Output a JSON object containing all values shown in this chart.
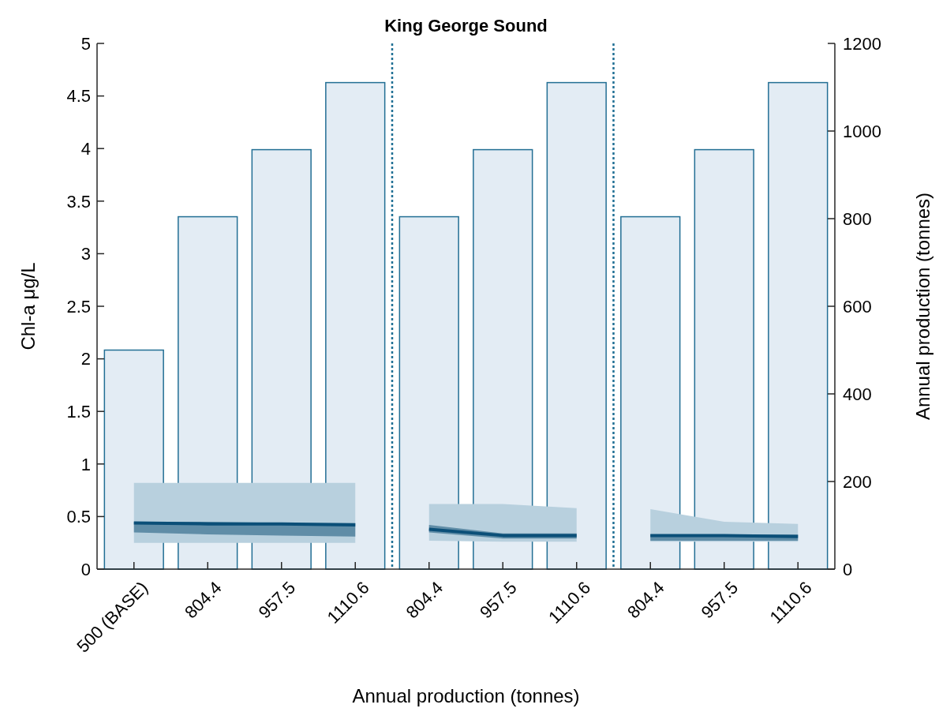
{
  "chart_data": {
    "type": "bar",
    "title": "King George Sound",
    "xlabel": "Annual production (tonnes)",
    "ylabel": "Chl-a μg/L",
    "y2label": "Annual production (tonnes)",
    "categories": [
      "500 (BASE)",
      "804.4",
      "957.5",
      "1110.6",
      "804.4",
      "957.5",
      "1110.6",
      "804.4",
      "957.5",
      "1110.6"
    ],
    "ylim": [
      0,
      5
    ],
    "yticks": [
      0,
      0.5,
      1,
      1.5,
      2,
      2.5,
      3,
      3.5,
      4,
      4.5,
      5
    ],
    "y2lim": [
      0,
      1200
    ],
    "y2ticks": [
      0,
      200,
      400,
      600,
      800,
      1000,
      1200
    ],
    "series": [
      {
        "axis": "y2",
        "color": "#e3ecf4",
        "values": [
          500,
          804.4,
          957.5,
          1110.6,
          804.4,
          957.5,
          1110.6,
          804.4,
          957.5,
          1110.6
        ]
      },
      {
        "type": "line",
        "color": "#b8d0de",
        "values": [
          null,
          null,
          null,
          null,
          null,
          null,
          null,
          null,
          null,
          null
        ],
        "lower": [
          0.25,
          0.25,
          0.25,
          0.25,
          null,
          null,
          null,
          null,
          null,
          null
        ],
        "upper": [
          0.82,
          0.82,
          0.82,
          0.82,
          null,
          null,
          null,
          null,
          null,
          null
        ]
      },
      {
        "type": "line",
        "color": "#b8d0de",
        "values": [
          null,
          null,
          null,
          null,
          null,
          null,
          null,
          null,
          null,
          null
        ],
        "lower": [
          null,
          null,
          null,
          null,
          0.27,
          0.26,
          0.26,
          null,
          null,
          null
        ],
        "upper": [
          null,
          null,
          null,
          null,
          0.62,
          0.62,
          0.58,
          null,
          null,
          null
        ]
      },
      {
        "type": "line",
        "color": "#b8d0de",
        "values": [
          null,
          null,
          null,
          null,
          null,
          null,
          null,
          null,
          null,
          null
        ],
        "lower": [
          null,
          null,
          null,
          null,
          null,
          null,
          null,
          0.26,
          0.26,
          0.26
        ],
        "upper": [
          null,
          null,
          null,
          null,
          null,
          null,
          null,
          0.57,
          0.45,
          0.43
        ]
      },
      {
        "type": "line",
        "color": "#0b4f78",
        "values": [
          0.44,
          0.43,
          0.43,
          0.42,
          null,
          null,
          null,
          null,
          null,
          null
        ],
        "lower": [
          0.35,
          0.33,
          0.32,
          0.31,
          null,
          null,
          null,
          null,
          null,
          null
        ],
        "upper": [
          0.45,
          0.45,
          0.44,
          0.44,
          null,
          null,
          null,
          null,
          null,
          null
        ]
      },
      {
        "type": "line",
        "color": "#0b4f78",
        "values": [
          null,
          null,
          null,
          null,
          0.38,
          0.32,
          0.32,
          null,
          null,
          null
        ],
        "lower": [
          null,
          null,
          null,
          null,
          0.35,
          0.29,
          0.29,
          null,
          null,
          null
        ],
        "upper": [
          null,
          null,
          null,
          null,
          0.42,
          0.34,
          0.34,
          null,
          null,
          null
        ]
      },
      {
        "type": "line",
        "color": "#0b4f78",
        "values": [
          null,
          null,
          null,
          null,
          null,
          null,
          null,
          0.32,
          0.32,
          0.31
        ],
        "lower": [
          null,
          null,
          null,
          null,
          null,
          null,
          null,
          0.27,
          0.27,
          0.27
        ],
        "upper": [
          null,
          null,
          null,
          null,
          null,
          null,
          null,
          0.33,
          0.33,
          0.33
        ]
      }
    ]
  }
}
